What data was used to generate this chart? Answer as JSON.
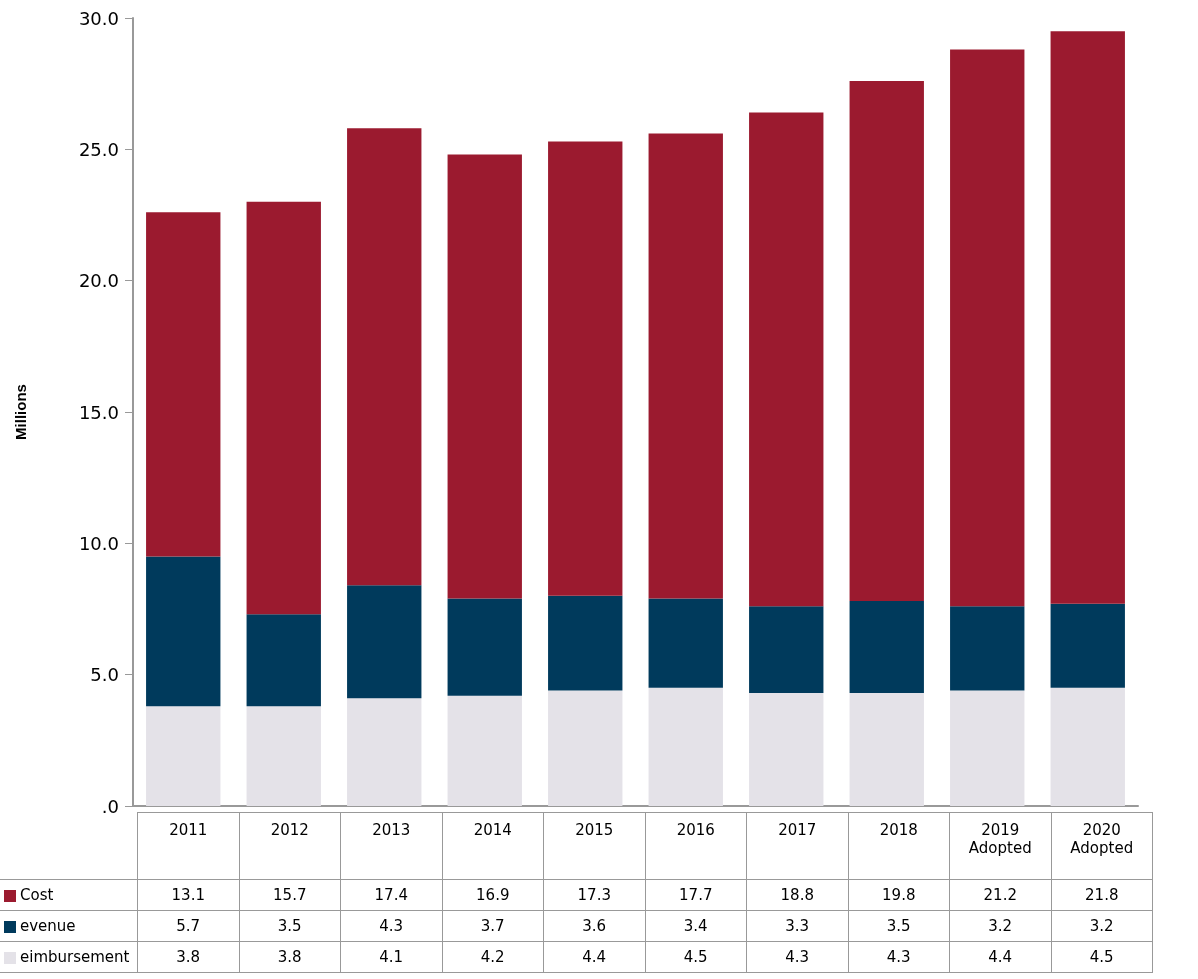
{
  "chart_data": {
    "type": "bar",
    "ylabel": "Millions",
    "stacked": true,
    "data_labels": true,
    "grid": false,
    "legend": "bottom left",
    "categories": [
      "2011",
      "2012",
      "2013",
      "2014",
      "2015",
      "2016",
      "2017",
      "2018",
      "2019 Adopted",
      "2020 Adopted"
    ],
    "series": [
      {
        "name": "eimbursement",
        "color": "#e4e2e8",
        "values": [
          3.8,
          3.8,
          4.1,
          4.2,
          4.4,
          4.5,
          4.3,
          4.3,
          4.4,
          4.5
        ]
      },
      {
        "name": "evenue",
        "color": "#003a5c",
        "values": [
          5.7,
          3.5,
          4.3,
          3.7,
          3.6,
          3.4,
          3.3,
          3.5,
          3.2,
          3.2
        ]
      },
      {
        "name": "Cost",
        "color": "#9b1a2f",
        "values": [
          13.1,
          15.7,
          17.4,
          16.9,
          17.3,
          17.7,
          18.8,
          19.8,
          21.2,
          21.8
        ]
      }
    ],
    "ylim": [
      0,
      30
    ],
    "yticks": [
      {
        "value": 0,
        "label": ".0"
      },
      {
        "value": 5,
        "label": "5.0"
      },
      {
        "value": 10,
        "label": "10.0"
      },
      {
        "value": 15,
        "label": "15.0"
      },
      {
        "value": 20,
        "label": "20.0"
      },
      {
        "value": 25,
        "label": "25.0"
      },
      {
        "value": 30,
        "label": "30.0"
      }
    ]
  }
}
